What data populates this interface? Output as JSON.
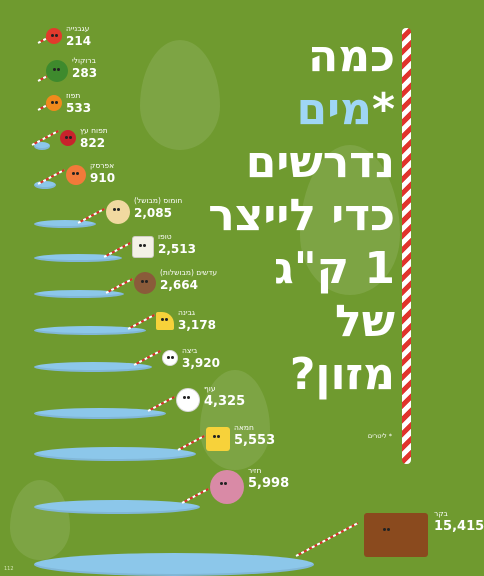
{
  "title": {
    "line1": "כמה",
    "line2": "מים",
    "line2_mark": "*",
    "line3": "נדרשים",
    "line4": "כדי לייצר",
    "line5": "1 ק\"ג",
    "line6": "של",
    "line7": "מזון?"
  },
  "footnote": "* ליטרים",
  "page_number": "112",
  "items": [
    {
      "name": "עגבנייה",
      "liters": "214",
      "icon": "tomato-icon",
      "color": "#e23a2c"
    },
    {
      "name": "ברוקולי",
      "liters": "283",
      "icon": "broccoli-icon",
      "color": "#3e8a2d"
    },
    {
      "name": "תפוז",
      "liters": "533",
      "icon": "orange-icon",
      "color": "#f08a1c"
    },
    {
      "name": "תפוח עץ",
      "liters": "822",
      "icon": "apple-icon",
      "color": "#c8232c"
    },
    {
      "name": "אפרסק",
      "liters": "910",
      "icon": "peach-icon",
      "color": "#f27a3a"
    },
    {
      "name": "חומוס (מבושל)",
      "liters": "2,085",
      "icon": "chickpea-icon",
      "color": "#f1d9a0"
    },
    {
      "name": "טופו",
      "liters": "2,513",
      "icon": "tofu-icon",
      "color": "#f4f1e6"
    },
    {
      "name": "עדשים (מבושלות)",
      "liters": "2,664",
      "icon": "lentil-icon",
      "color": "#8a5b3a"
    },
    {
      "name": "גבינה",
      "liters": "3,178",
      "icon": "cheese-icon",
      "color": "#f7d23a"
    },
    {
      "name": "ביצה",
      "liters": "3,920",
      "icon": "egg-icon",
      "color": "#ffffff"
    },
    {
      "name": "עוף",
      "liters": "4,325",
      "icon": "chicken-icon",
      "color": "#ffffff"
    },
    {
      "name": "חמאה",
      "liters": "5,553",
      "icon": "butter-icon",
      "color": "#f7d23a"
    },
    {
      "name": "חזיר",
      "liters": "5,998",
      "icon": "pig-icon",
      "color": "#d98aa6"
    },
    {
      "name": "בקר",
      "liters": "15,415",
      "icon": "cow-icon",
      "color": "#8a4a1e"
    }
  ],
  "colors": {
    "background": "#6f9a2f",
    "water": "#8cc7ea",
    "title_accent": "#9fd6f5",
    "straw_red": "#e0342c"
  }
}
